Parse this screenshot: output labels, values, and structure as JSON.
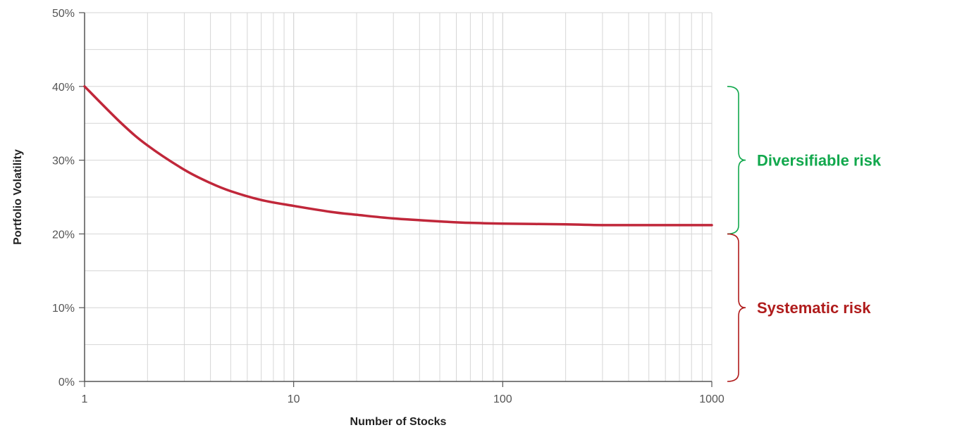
{
  "chart_data": {
    "type": "line",
    "title": "",
    "xlabel": "Number of Stocks",
    "ylabel": "Portfolio Volatility",
    "x_scale": "log",
    "xlim": [
      1,
      1000
    ],
    "ylim": [
      0,
      50
    ],
    "x_ticks": [
      1,
      10,
      100,
      1000
    ],
    "x_tick_labels": [
      "1",
      "10",
      "100",
      "1000"
    ],
    "y_ticks": [
      0,
      10,
      20,
      30,
      40,
      50
    ],
    "y_tick_labels": [
      "0%",
      "10%",
      "20%",
      "30%",
      "40%",
      "50%"
    ],
    "grid": true,
    "series": [
      {
        "color": "#c0273a",
        "x": [
          1,
          1.5,
          2,
          3,
          4,
          5,
          7,
          10,
          15,
          20,
          30,
          50,
          70,
          100,
          200,
          300,
          500,
          1000
        ],
        "y": [
          40,
          35,
          32,
          28.7,
          26.9,
          25.8,
          24.6,
          23.8,
          23,
          22.6,
          22.1,
          21.7,
          21.5,
          21.4,
          21.3,
          21.2,
          21.2,
          21.2
        ]
      }
    ],
    "annotations": [
      {
        "label": "Diversifiable risk",
        "color": "#12a84d",
        "y_from": 20,
        "y_to": 40
      },
      {
        "label": "Systematic risk",
        "color": "#b01c1c",
        "y_from": 0,
        "y_to": 20
      }
    ]
  }
}
